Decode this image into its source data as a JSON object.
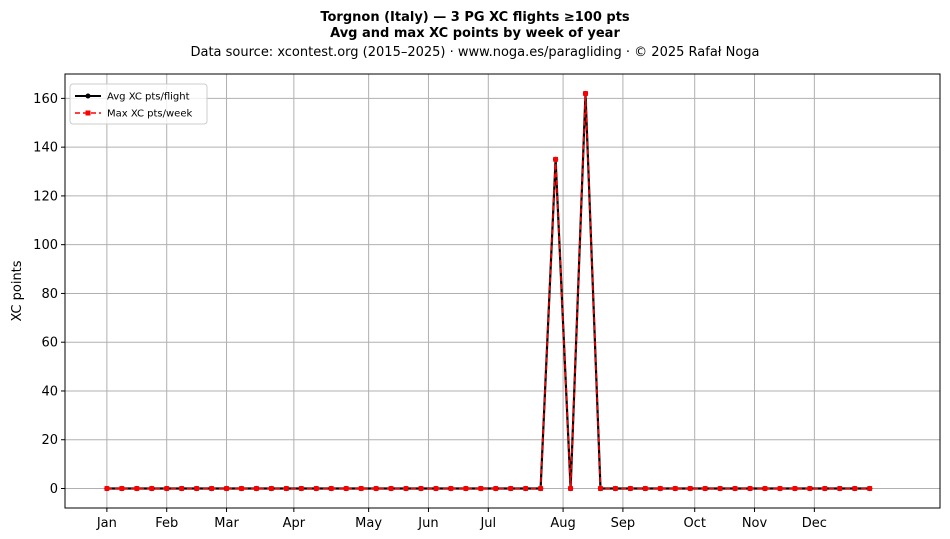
{
  "chart_data": {
    "type": "line",
    "title": "Torgnon (Italy)  —  3 PG XC flights ≥100 pts",
    "subtitle": "Avg and max XC points by week of year",
    "source_note": "Data source: xcontest.org (2015–2025)  ·  www.noga.es/paragliding  ·  © 2025 Rafał Noga",
    "xlabel": "",
    "ylabel": "XC points",
    "ylim": [
      -8,
      170
    ],
    "xlim": [
      -2.8,
      55.7
    ],
    "yticks": [
      0,
      20,
      40,
      60,
      80,
      100,
      120,
      140,
      160
    ],
    "xticks": [
      {
        "label": "Jan",
        "week": 0
      },
      {
        "label": "Feb",
        "week": 4
      },
      {
        "label": "Mar",
        "week": 8
      },
      {
        "label": "Apr",
        "week": 12.5
      },
      {
        "label": "May",
        "week": 17.5
      },
      {
        "label": "Jun",
        "week": 21.5
      },
      {
        "label": "Jul",
        "week": 25.5
      },
      {
        "label": "Aug",
        "week": 30.5
      },
      {
        "label": "Sep",
        "week": 34.5
      },
      {
        "label": "Oct",
        "week": 39.3
      },
      {
        "label": "Nov",
        "week": 43.3
      },
      {
        "label": "Dec",
        "week": 47.3
      }
    ],
    "grid": true,
    "legend_position": "top-left",
    "x": [
      0,
      1,
      2,
      3,
      4,
      5,
      6,
      7,
      8,
      9,
      10,
      11,
      12,
      13,
      14,
      15,
      16,
      17,
      18,
      19,
      20,
      21,
      22,
      23,
      24,
      25,
      26,
      27,
      28,
      29,
      30,
      31,
      32,
      33,
      34,
      35,
      36,
      37,
      38,
      39,
      40,
      41,
      42,
      43,
      44,
      45,
      46,
      47,
      48,
      49,
      50,
      51
    ],
    "series": [
      {
        "name": "Avg XC pts/flight",
        "color": "#000000",
        "style": "solid-dot",
        "values": [
          0,
          0,
          0,
          0,
          0,
          0,
          0,
          0,
          0,
          0,
          0,
          0,
          0,
          0,
          0,
          0,
          0,
          0,
          0,
          0,
          0,
          0,
          0,
          0,
          0,
          0,
          0,
          0,
          0,
          0,
          135,
          0,
          162,
          0,
          0,
          0,
          0,
          0,
          0,
          0,
          0,
          0,
          0,
          0,
          0,
          0,
          0,
          0,
          0,
          0,
          0,
          0
        ]
      },
      {
        "name": "Max XC pts/week",
        "color": "#ff0000",
        "style": "dashed-square",
        "values": [
          0,
          0,
          0,
          0,
          0,
          0,
          0,
          0,
          0,
          0,
          0,
          0,
          0,
          0,
          0,
          0,
          0,
          0,
          0,
          0,
          0,
          0,
          0,
          0,
          0,
          0,
          0,
          0,
          0,
          0,
          135,
          0,
          162,
          0,
          0,
          0,
          0,
          0,
          0,
          0,
          0,
          0,
          0,
          0,
          0,
          0,
          0,
          0,
          0,
          0,
          0,
          0
        ]
      }
    ]
  }
}
